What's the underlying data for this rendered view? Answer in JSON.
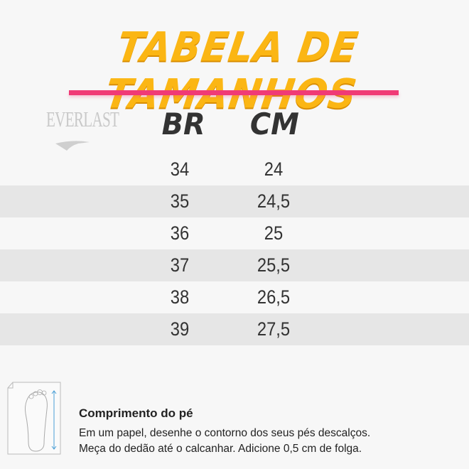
{
  "title": "Tabela de tamanhos",
  "brand": "EVERLAST",
  "colors": {
    "title": "#fbb614",
    "rule": "#f03a76",
    "band": "#e6e6e6"
  },
  "table": {
    "headers": [
      "BR",
      "CM"
    ],
    "rows": [
      [
        "34",
        "24"
      ],
      [
        "35",
        "24,5"
      ],
      [
        "36",
        "25"
      ],
      [
        "37",
        "25,5"
      ],
      [
        "38",
        "26,5"
      ],
      [
        "39",
        "27,5"
      ]
    ]
  },
  "footer": {
    "icon": "foot-measure-icon",
    "heading": "Comprimento do pé",
    "line1": "Em um papel, desenhe o contorno dos seus pés descalços.",
    "line2": "Meça do dedão até o calcanhar. Adicione 0,5 cm de folga."
  }
}
